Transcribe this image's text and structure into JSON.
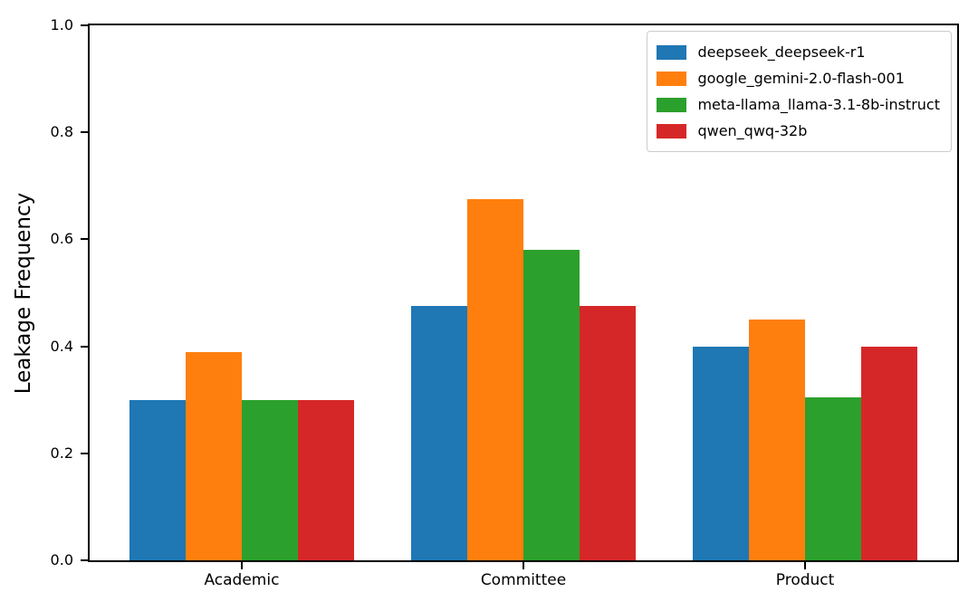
{
  "figure": {
    "background": "#ffffff",
    "text_color": "#000000",
    "spine_color": "#000000"
  },
  "chart_data": {
    "type": "bar",
    "title": "",
    "xlabel": "",
    "ylabel": "Leakage Frequency",
    "categories": [
      "Academic",
      "Committee",
      "Product"
    ],
    "series": [
      {
        "name": "deepseek_deepseek-r1",
        "color": "#1f77b4",
        "values": [
          0.3,
          0.475,
          0.4
        ]
      },
      {
        "name": "google_gemini-2.0-flash-001",
        "color": "#ff7f0e",
        "values": [
          0.39,
          0.675,
          0.45
        ]
      },
      {
        "name": "meta-llama_llama-3.1-8b-instruct",
        "color": "#2ca02c",
        "values": [
          0.3,
          0.58,
          0.305
        ]
      },
      {
        "name": "qwen_qwq-32b",
        "color": "#d62728",
        "values": [
          0.3,
          0.475,
          0.4
        ]
      }
    ],
    "ylim": [
      0.0,
      1.0
    ],
    "yticks": [
      0.0,
      0.2,
      0.4,
      0.6,
      0.8,
      1.0
    ],
    "ytick_labels": [
      "0.0",
      "0.2",
      "0.4",
      "0.6",
      "0.8",
      "1.0"
    ],
    "xlim": [
      -0.54,
      2.54
    ],
    "bar_width": 0.2,
    "grid": false,
    "legend_position": "upper right",
    "legend_border_color": "#cccccc"
  }
}
